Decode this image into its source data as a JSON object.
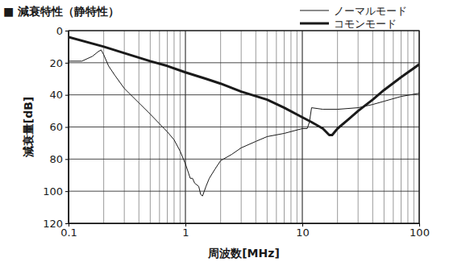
{
  "chart_data": {
    "type": "line",
    "title": "■ 減衰特性（静特性）",
    "x_label": "周波数[MHz]",
    "y_label": "減衰量[dB]",
    "log": "x",
    "grid": true,
    "legend": "top-right",
    "xlim": [
      0.1,
      100
    ],
    "xticks": [
      0.1,
      1,
      10,
      100
    ],
    "ylim": [
      0,
      120
    ],
    "yticks": [
      0,
      20,
      40,
      60,
      80,
      100,
      120
    ],
    "series": [
      {
        "name": "ノーマルモード",
        "color": "#1a1a1a",
        "line_style": "thin",
        "x": [
          0.1,
          0.13,
          0.16,
          0.18,
          0.19,
          0.2,
          0.22,
          0.25,
          0.3,
          0.4,
          0.5,
          0.6,
          0.7,
          0.8,
          0.9,
          1.0,
          1.1,
          1.15,
          1.2,
          1.3,
          1.35,
          1.4,
          1.45,
          1.5,
          1.6,
          1.8,
          2,
          2.5,
          3,
          4,
          5,
          7,
          10,
          11,
          11.5,
          12,
          15,
          20,
          30,
          40,
          50,
          70,
          100
        ],
        "values": [
          19,
          19,
          16,
          13,
          12,
          15,
          22,
          28,
          36,
          45,
          52,
          58,
          63,
          68,
          75,
          83,
          92,
          92,
          95,
          97,
          102,
          103,
          100,
          97,
          92,
          86,
          81,
          77,
          73,
          69,
          66,
          64,
          61,
          61,
          57,
          48,
          49,
          49,
          48,
          46,
          44,
          41,
          39
        ]
      },
      {
        "name": "コモンモード",
        "color": "#1a1a1a",
        "line_style": "thick",
        "x": [
          0.1,
          0.2,
          0.3,
          0.5,
          0.7,
          1,
          1.5,
          2,
          3,
          5,
          7,
          10,
          12,
          15,
          17,
          18,
          20,
          25,
          30,
          40,
          50,
          70,
          100
        ],
        "values": [
          4,
          10,
          14,
          19,
          22,
          26,
          30,
          33,
          38,
          43,
          48,
          54,
          57,
          61,
          65,
          65,
          61,
          55,
          50,
          43,
          37,
          29,
          21
        ]
      }
    ]
  }
}
